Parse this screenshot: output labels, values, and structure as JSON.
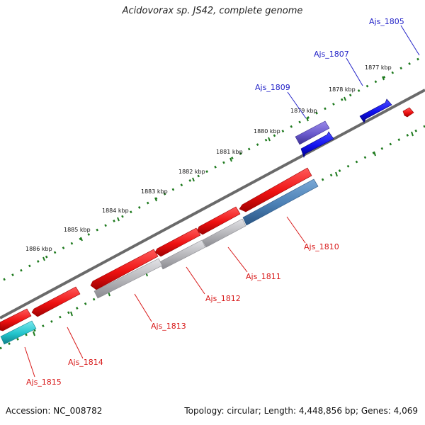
{
  "title": "Acidovorax sp. JS42, complete genome",
  "footer": {
    "accession": "Accession: NC_008782",
    "summary": "Topology: circular; Length: 4,448,856 bp; Genes: 4,069"
  },
  "colors": {
    "backbone": "#808080",
    "tick": "#1e7a1e",
    "forward_label": "#2424c8",
    "reverse_label": "#d81818",
    "red_gene": "#ee1111",
    "blue_gene": "#1010ee",
    "purple_gene": "#6a5acd",
    "grey_gene": "#b4b4b8",
    "steelblue_gene": "#4a7fb4",
    "cyan_gene": "#22c4cc"
  },
  "scale_labels": [
    "1877 kbp",
    "1878 kbp",
    "1879 kbp",
    "1880 kbp",
    "1881 kbp",
    "1882 kbp",
    "1883 kbp",
    "1884 kbp",
    "1885 kbp",
    "1886 kbp"
  ],
  "gene_labels": {
    "forward": [
      "Ajs_1805",
      "Ajs_1807",
      "Ajs_1809"
    ],
    "reverse": [
      "Ajs_1810",
      "Ajs_1811",
      "Ajs_1812",
      "Ajs_1813",
      "Ajs_1814",
      "Ajs_1815"
    ]
  }
}
